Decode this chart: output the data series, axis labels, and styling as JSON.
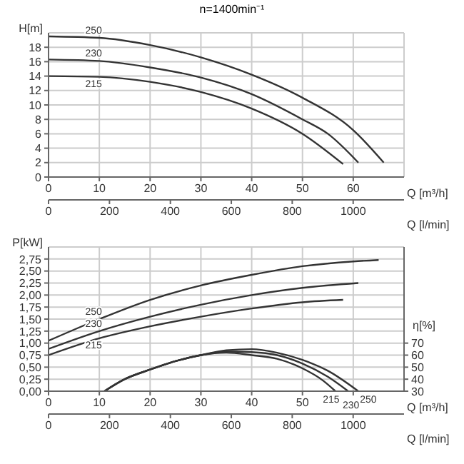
{
  "chart_data": [
    {
      "type": "line",
      "title": "n=1400min⁻¹",
      "xlabel": "Q [m³/h]",
      "ylabel": "H[m]",
      "x2label": "Q [l/min]",
      "xlim": [
        0,
        70
      ],
      "xticks": [
        0,
        10,
        20,
        30,
        40,
        50,
        60
      ],
      "x2lim": [
        0,
        1167
      ],
      "x2ticks": [
        0,
        200,
        400,
        600,
        800,
        1000
      ],
      "ylim": [
        0,
        20
      ],
      "yticks": [
        0,
        2,
        4,
        6,
        8,
        10,
        12,
        14,
        16,
        18
      ],
      "grid": true,
      "line_style": "solid",
      "series": [
        {
          "name": "250",
          "color": "#333333",
          "x": [
            0,
            10,
            20,
            30,
            40,
            50,
            60,
            66
          ],
          "values": [
            19.5,
            19.3,
            18.3,
            16.6,
            14.2,
            11,
            6.5,
            2
          ]
        },
        {
          "name": "230",
          "color": "#333333",
          "x": [
            0,
            10,
            20,
            30,
            40,
            50,
            55,
            61
          ],
          "values": [
            16.3,
            16.1,
            15.2,
            13.8,
            11.5,
            8,
            6,
            2
          ]
        },
        {
          "name": "215",
          "color": "#333333",
          "x": [
            0,
            10,
            20,
            30,
            40,
            50,
            58
          ],
          "values": [
            14,
            13.9,
            13.2,
            11.8,
            9.5,
            6,
            1.8
          ]
        }
      ]
    },
    {
      "type": "line",
      "xlabel": "Q [m³/h]",
      "ylabel": "P[kW]",
      "y2label": "η[%]",
      "x2label": "Q [l/min]",
      "xlim": [
        0,
        70
      ],
      "xticks": [
        0,
        10,
        20,
        30,
        40,
        50,
        {
          "value": 60,
          "label": null
        }
      ],
      "x2lim": [
        0,
        1167
      ],
      "x2ticks": [
        0,
        200,
        400,
        600,
        800,
        1000
      ],
      "ylim": [
        0,
        3
      ],
      "yticks": [
        {
          "value": 0,
          "label": "0,00"
        },
        {
          "value": 0.25,
          "label": "0,25"
        },
        {
          "value": 0.5,
          "label": "0,50"
        },
        {
          "value": 0.75,
          "label": "0,75"
        },
        {
          "value": 1,
          "label": "1,00"
        },
        {
          "value": 1.25,
          "label": "1,25"
        },
        {
          "value": 1.5,
          "label": "1,50"
        },
        {
          "value": 1.75,
          "label": "1,75"
        },
        {
          "value": 2,
          "label": "2,00"
        },
        {
          "value": 2.25,
          "label": "2,25"
        },
        {
          "value": 2.5,
          "label": "2,50"
        },
        {
          "value": 2.75,
          "label": "2,75"
        }
      ],
      "y2lim": [
        30,
        150
      ],
      "y2ticks": [
        30,
        40,
        50,
        60,
        70
      ],
      "grid": true,
      "line_style": "solid",
      "series": [
        {
          "name": "250",
          "color": "#333333",
          "x": [
            0,
            10,
            20,
            30,
            40,
            50,
            60,
            65
          ],
          "values": [
            1.05,
            1.5,
            1.9,
            2.2,
            2.42,
            2.6,
            2.7,
            2.73
          ]
        },
        {
          "name": "230",
          "color": "#333333",
          "x": [
            0,
            10,
            20,
            30,
            40,
            50,
            61
          ],
          "values": [
            0.88,
            1.25,
            1.55,
            1.8,
            2.0,
            2.15,
            2.25
          ]
        },
        {
          "name": "215",
          "color": "#333333",
          "x": [
            0,
            10,
            20,
            30,
            40,
            50,
            58
          ],
          "values": [
            0.75,
            1.1,
            1.35,
            1.55,
            1.72,
            1.85,
            1.9
          ]
        },
        {
          "name": "215",
          "color": "#333333",
          "axis": "y2",
          "x": [
            11,
            15,
            20,
            25,
            30,
            35,
            40,
            45,
            50,
            54,
            56.5
          ],
          "values": [
            30,
            40,
            48,
            55,
            60,
            62,
            60,
            57,
            49,
            39,
            30
          ]
        },
        {
          "name": "230",
          "color": "#333333",
          "axis": "y2",
          "x": [
            11,
            15,
            20,
            25,
            30,
            35,
            40,
            45,
            50,
            55,
            59
          ],
          "values": [
            30,
            40,
            48,
            55,
            60,
            63,
            62.5,
            60,
            53,
            42,
            30
          ]
        },
        {
          "name": "250",
          "color": "#333333",
          "axis": "y2",
          "x": [
            11,
            15,
            20,
            25,
            30,
            35,
            40,
            45,
            50,
            55,
            61
          ],
          "values": [
            30,
            40,
            48,
            55,
            60,
            64,
            65,
            62,
            56,
            47,
            30
          ]
        }
      ]
    }
  ]
}
